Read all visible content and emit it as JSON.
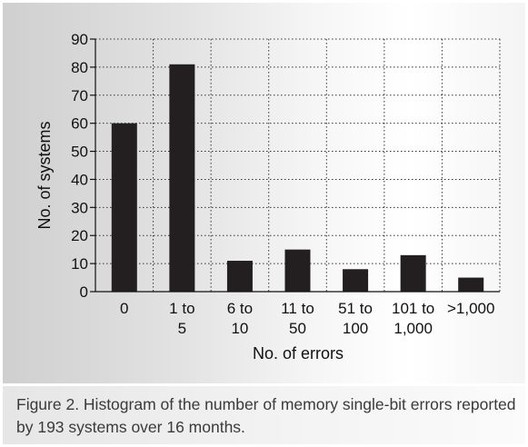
{
  "caption": "Figure 2. Histogram of the number of memory single-bit errors reported by 193 systems over 16 months.",
  "colors": {
    "bar": "#231f20",
    "grid": "#333333"
  },
  "chart_data": {
    "type": "bar",
    "title": "",
    "xlabel": "No. of errors",
    "ylabel": "No. of systems",
    "categories": [
      [
        "0"
      ],
      [
        "1 to",
        "5"
      ],
      [
        "6 to",
        "10"
      ],
      [
        "11 to",
        "50"
      ],
      [
        "51 to",
        "100"
      ],
      [
        "101 to",
        "1,000"
      ],
      [
        ">1,000"
      ]
    ],
    "values": [
      60,
      81,
      11,
      15,
      8,
      13,
      5
    ],
    "ylim": [
      0,
      90
    ],
    "yticks": [
      0,
      10,
      20,
      30,
      40,
      50,
      60,
      70,
      80,
      90
    ],
    "grid": "dotted, horizontal and vertical",
    "legend": "none"
  }
}
